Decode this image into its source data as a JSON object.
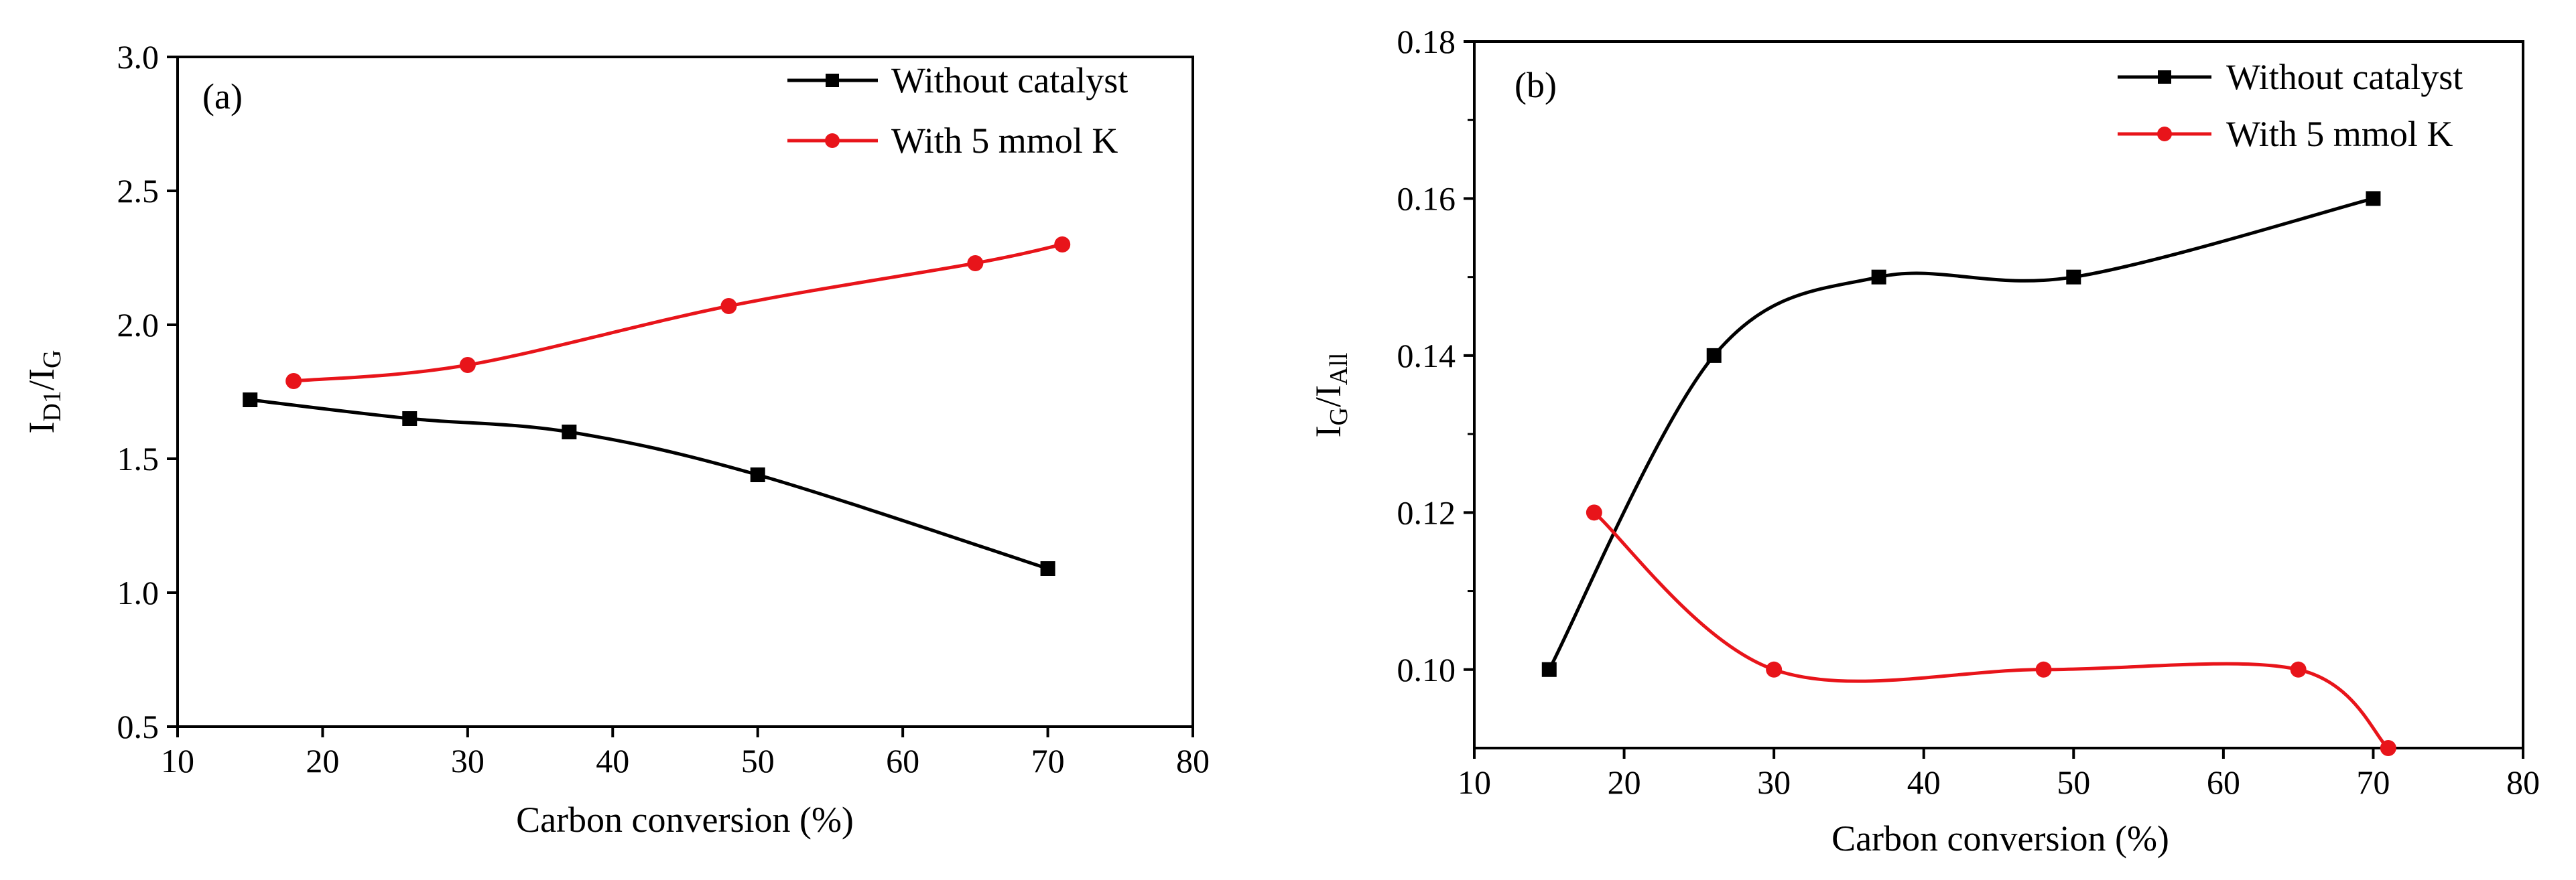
{
  "chart_data": [
    {
      "type": "line",
      "panel_label": "(a)",
      "xlabel": "Carbon conversion (%)",
      "ylabel": {
        "main": "I",
        "sub1": "D1",
        "sep": "/I",
        "sub2": "G"
      },
      "xlim": [
        10,
        80
      ],
      "ylim": [
        0.5,
        3.0
      ],
      "xticks": [
        "10",
        "20",
        "30",
        "40",
        "50",
        "60",
        "70",
        "80"
      ],
      "yticks": [
        "0.5",
        "1.0",
        "1.5",
        "2.0",
        "2.5",
        "3.0"
      ],
      "legend_position": "top-right",
      "series": [
        {
          "name": "Without catalyst",
          "color": "#000000",
          "marker": "square",
          "x": [
            15,
            26,
            37,
            50,
            70
          ],
          "y": [
            1.72,
            1.65,
            1.6,
            1.44,
            1.09
          ]
        },
        {
          "name": "With 5 mmol K",
          "color": "#e8141a",
          "marker": "circle",
          "x": [
            18,
            30,
            48,
            65,
            71
          ],
          "y": [
            1.79,
            1.85,
            2.07,
            2.23,
            2.3
          ]
        }
      ]
    },
    {
      "type": "line",
      "panel_label": "(b)",
      "xlabel": "Carbon conversion (%)",
      "ylabel": {
        "main": "I",
        "sub1": "G",
        "sep": "/I",
        "sub2": "All"
      },
      "xlim": [
        10,
        80
      ],
      "ylim": [
        0.09,
        0.18
      ],
      "xticks": [
        "10",
        "20",
        "30",
        "40",
        "50",
        "60",
        "70",
        "80"
      ],
      "yticks": [
        "0.10",
        "0.12",
        "0.14",
        "0.16",
        "0.18"
      ],
      "legend_position": "top-right",
      "series": [
        {
          "name": "Without catalyst",
          "color": "#000000",
          "marker": "square",
          "x": [
            15,
            26,
            37,
            50,
            70
          ],
          "y": [
            0.1,
            0.14,
            0.15,
            0.15,
            0.16
          ]
        },
        {
          "name": "With 5 mmol K",
          "color": "#e8141a",
          "marker": "circle",
          "x": [
            18,
            30,
            48,
            65,
            71
          ],
          "y": [
            0.12,
            0.1,
            0.1,
            0.1,
            0.09
          ]
        }
      ]
    }
  ]
}
